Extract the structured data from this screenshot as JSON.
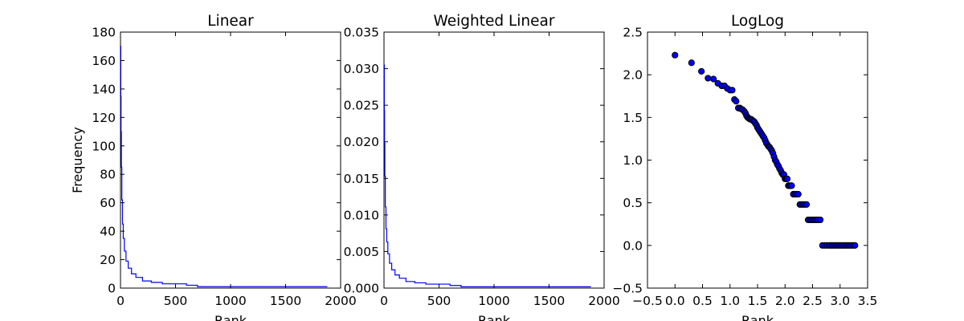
{
  "chart_data": [
    {
      "type": "line",
      "title": "Linear",
      "xlabel": "Rank",
      "ylabel": "Frequency",
      "xlim": [
        0,
        2000
      ],
      "ylim": [
        0,
        180
      ],
      "xticks": [
        "0",
        "500",
        "1000",
        "1500",
        "2000"
      ],
      "yticks": [
        "0",
        "20",
        "40",
        "60",
        "80",
        "100",
        "120",
        "140",
        "160",
        "180"
      ],
      "grid": false,
      "line_color": "#0000ff",
      "series": [
        {
          "x": [
            1,
            3,
            5,
            8,
            12,
            18,
            25,
            35,
            50,
            70,
            100,
            140,
            200,
            280,
            380,
            480,
            600,
            700,
            900,
            1100,
            1300,
            1500,
            1700,
            1880
          ],
          "y": [
            170,
            135,
            110,
            85,
            62,
            45,
            35,
            26,
            19,
            14,
            10,
            7.5,
            5,
            4,
            3,
            3,
            2,
            1,
            1,
            1,
            1,
            1,
            1,
            1
          ]
        }
      ]
    },
    {
      "type": "line",
      "title": "Weighted Linear",
      "xlabel": "Rank",
      "ylabel": "",
      "xlim": [
        0,
        2000
      ],
      "ylim": [
        0,
        0.035
      ],
      "xticks": [
        "0",
        "500",
        "1000",
        "1500",
        "2000"
      ],
      "yticks": [
        "0.000",
        "0.005",
        "0.010",
        "0.015",
        "0.020",
        "0.025",
        "0.030",
        "0.035"
      ],
      "grid": false,
      "line_color": "#0000ff",
      "series": [
        {
          "x": [
            1,
            3,
            5,
            8,
            12,
            18,
            25,
            35,
            50,
            70,
            100,
            140,
            200,
            280,
            380,
            480,
            600,
            700,
            900,
            1100,
            1300,
            1500,
            1700,
            1880
          ],
          "y": [
            0.0305,
            0.0243,
            0.0198,
            0.0153,
            0.0111,
            0.0081,
            0.0063,
            0.0047,
            0.0034,
            0.0025,
            0.0018,
            0.00135,
            0.0009,
            0.00072,
            0.00054,
            0.00054,
            0.00036,
            0.00018,
            0.00018,
            0.00018,
            0.00018,
            0.00018,
            0.00018,
            0.00018
          ]
        }
      ]
    },
    {
      "type": "scatter",
      "title": "LogLog",
      "xlabel": "Rank",
      "ylabel": "",
      "xlim": [
        -0.5,
        3.5
      ],
      "ylim": [
        -0.5,
        2.5
      ],
      "xticks": [
        "−0.5",
        "0.0",
        "0.5",
        "1.0",
        "1.5",
        "2.0",
        "2.5",
        "3.0",
        "3.5"
      ],
      "yticks": [
        "−0.5",
        "0.0",
        "0.5",
        "1.0",
        "1.5",
        "2.0",
        "2.5"
      ],
      "grid": false,
      "marker_color": "#0000ff",
      "series": [
        {
          "x": [
            0.0,
            0.3,
            0.48,
            0.6,
            0.7,
            0.78,
            0.85,
            0.9,
            0.95,
            1.0,
            1.04,
            1.08,
            1.11,
            1.15,
            1.18,
            1.2,
            1.23,
            1.26,
            1.28,
            1.3,
            1.32,
            1.34,
            1.36,
            1.38,
            1.4,
            1.42,
            1.44,
            1.46,
            1.48,
            1.5,
            1.52,
            1.54,
            1.56,
            1.58,
            1.6,
            1.62,
            1.64,
            1.66,
            1.68,
            1.7,
            1.72,
            1.74,
            1.76,
            1.78,
            1.8,
            1.82,
            1.84,
            1.86,
            1.88,
            1.9,
            1.92,
            1.94,
            1.96,
            1.98,
            2.0,
            2.02,
            2.04,
            2.06,
            2.08,
            2.1,
            2.12,
            2.15,
            2.18,
            2.21,
            2.24,
            2.27,
            2.3,
            2.33,
            2.36,
            2.39,
            2.42,
            2.45,
            2.48,
            2.51,
            2.54,
            2.57,
            2.6,
            2.64,
            2.68,
            2.72,
            2.76,
            2.8,
            2.83,
            2.86,
            2.89,
            2.92,
            2.95,
            2.98,
            3.01,
            3.04,
            3.07,
            3.1,
            3.13,
            3.16,
            3.19,
            3.22,
            3.25,
            3.27
          ],
          "y": [
            2.23,
            2.14,
            2.04,
            1.96,
            1.95,
            1.9,
            1.87,
            1.87,
            1.84,
            1.82,
            1.82,
            1.71,
            1.69,
            1.61,
            1.61,
            1.6,
            1.59,
            1.57,
            1.55,
            1.52,
            1.5,
            1.49,
            1.48,
            1.48,
            1.47,
            1.46,
            1.45,
            1.43,
            1.41,
            1.38,
            1.36,
            1.34,
            1.32,
            1.3,
            1.28,
            1.26,
            1.23,
            1.2,
            1.18,
            1.16,
            1.15,
            1.13,
            1.11,
            1.08,
            1.04,
            1.0,
            0.98,
            0.95,
            0.93,
            0.9,
            0.88,
            0.85,
            0.83,
            0.83,
            0.78,
            0.78,
            0.78,
            0.7,
            0.7,
            0.7,
            0.7,
            0.6,
            0.6,
            0.6,
            0.6,
            0.48,
            0.48,
            0.48,
            0.48,
            0.48,
            0.3,
            0.3,
            0.3,
            0.3,
            0.3,
            0.3,
            0.3,
            0.3,
            0.0,
            0.0,
            0.0,
            0.0,
            0.0,
            0.0,
            0.0,
            0.0,
            0.0,
            0.0,
            0.0,
            0.0,
            0.0,
            0.0,
            0.0,
            0.0,
            0.0,
            0.0,
            0.0,
            0.0
          ]
        }
      ]
    }
  ]
}
